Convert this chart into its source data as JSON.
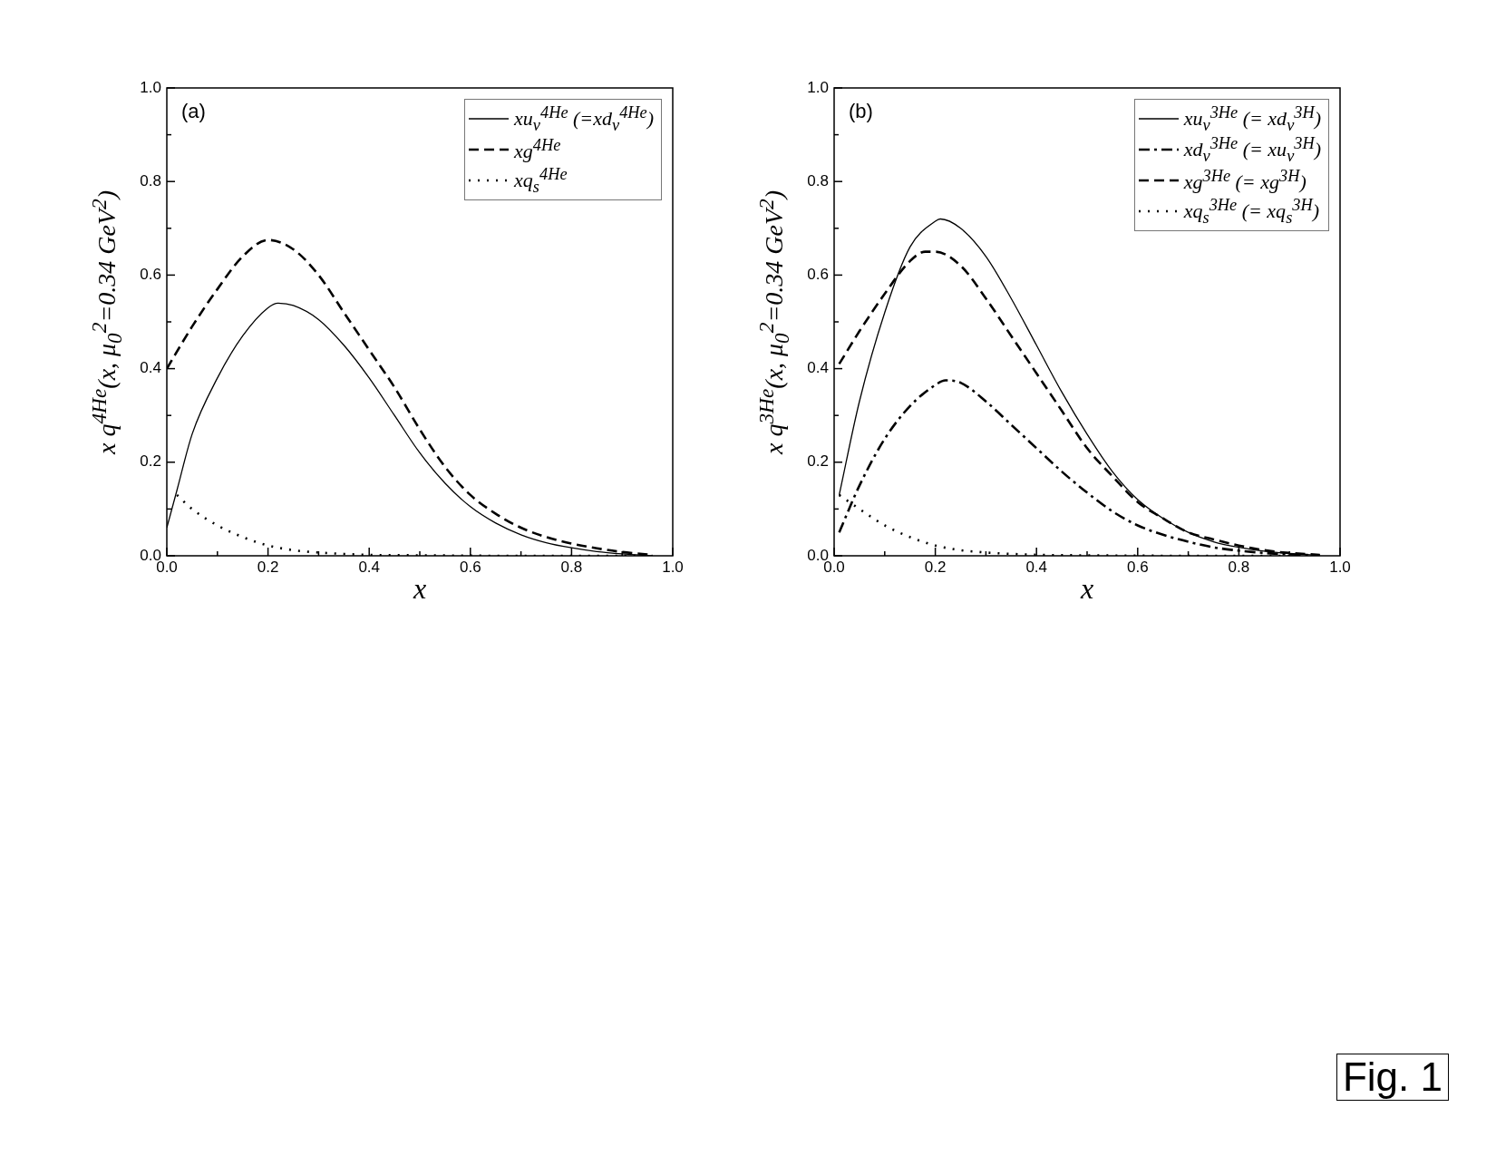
{
  "chart_data": [
    {
      "type": "line",
      "ylabel": "x q$^{4He}$(x, μ$_{0}$$^{2}$=0.34 GeV$^{2}$)",
      "xlabel": "x",
      "annotations": [
        "(a)"
      ],
      "legend": "top right",
      "xlim": [
        0,
        1
      ],
      "ylim": [
        0,
        1
      ],
      "xticks": [
        {
          "value": 0,
          "label": "0.0"
        },
        {
          "value": 0.1,
          "label": null
        },
        0.2,
        {
          "value": 0.3,
          "label": null
        },
        0.4,
        {
          "value": 0.5,
          "label": null
        },
        0.6,
        {
          "value": 0.7,
          "label": null
        },
        0.8,
        {
          "value": 0.9,
          "label": null
        },
        {
          "value": 1,
          "label": "1.0"
        }
      ],
      "yticks": [
        {
          "value": 0,
          "label": "0.0"
        },
        {
          "value": 0.1,
          "label": null
        },
        0.2,
        {
          "value": 0.3,
          "label": null
        },
        0.4,
        {
          "value": 0.5,
          "label": null
        },
        0.6,
        {
          "value": 0.7,
          "label": null
        },
        0.8,
        {
          "value": 0.9,
          "label": null
        },
        {
          "value": 1,
          "label": "1.0"
        }
      ],
      "series": [
        {
          "name": "xu$_{v}$$^{4He}$ (=xd$_{v}$$^{4He}$)",
          "color": "#000000",
          "line_style": "solid",
          "x": [
            0,
            0.02,
            0.05,
            0.1,
            0.15,
            0.2,
            0.22,
            0.25,
            0.3,
            0.35,
            0.4,
            0.45,
            0.5,
            0.55,
            0.6,
            0.65,
            0.7,
            0.75,
            0.8,
            0.85,
            0.9,
            0.96
          ],
          "values": [
            0.06,
            0.14,
            0.26,
            0.38,
            0.47,
            0.53,
            0.54,
            0.535,
            0.505,
            0.45,
            0.38,
            0.3,
            0.22,
            0.155,
            0.105,
            0.07,
            0.045,
            0.028,
            0.017,
            0.009,
            0.004,
            0.0
          ]
        },
        {
          "name": "xg$^{4He}$",
          "color": "#000000",
          "line_style": "dashed",
          "x": [
            0,
            0.05,
            0.1,
            0.15,
            0.2,
            0.25,
            0.3,
            0.35,
            0.4,
            0.45,
            0.5,
            0.55,
            0.6,
            0.65,
            0.7,
            0.75,
            0.8,
            0.85,
            0.9,
            0.96
          ],
          "values": [
            0.4,
            0.49,
            0.57,
            0.64,
            0.675,
            0.655,
            0.6,
            0.52,
            0.44,
            0.36,
            0.27,
            0.19,
            0.13,
            0.09,
            0.06,
            0.04,
            0.026,
            0.016,
            0.008,
            0.002
          ]
        },
        {
          "name": "xq$_{s}$$^{4He}$",
          "color": "#000000",
          "line_style": "dotted",
          "x": [
            0.02,
            0.05,
            0.1,
            0.15,
            0.2,
            0.25,
            0.3,
            0.35,
            0.4,
            0.5,
            0.7,
            0.96
          ],
          "values": [
            0.13,
            0.1,
            0.065,
            0.04,
            0.022,
            0.012,
            0.007,
            0.004,
            0.002,
            0.001,
            0.0,
            0.0
          ]
        }
      ]
    },
    {
      "type": "line",
      "ylabel": "x q$^{3He}$(x, μ$_{0}$$^{2}$=0.34 GeV$^{2}$)",
      "xlabel": "x",
      "annotations": [
        "(b)",
        "Fig. 1"
      ],
      "legend": "top right",
      "xlim": [
        0,
        1
      ],
      "ylim": [
        0,
        1
      ],
      "xticks": [
        {
          "value": 0,
          "label": "0.0"
        },
        {
          "value": 0.1,
          "label": null
        },
        0.2,
        {
          "value": 0.3,
          "label": null
        },
        0.4,
        {
          "value": 0.5,
          "label": null
        },
        0.6,
        {
          "value": 0.7,
          "label": null
        },
        0.8,
        {
          "value": 0.9,
          "label": null
        },
        {
          "value": 1,
          "label": "1.0"
        }
      ],
      "yticks": [
        {
          "value": 0,
          "label": "0.0"
        },
        {
          "value": 0.1,
          "label": null
        },
        0.2,
        {
          "value": 0.3,
          "label": null
        },
        0.4,
        {
          "value": 0.5,
          "label": null
        },
        0.6,
        {
          "value": 0.7,
          "label": null
        },
        0.8,
        {
          "value": 0.9,
          "label": null
        },
        {
          "value": 1,
          "label": "1.0"
        }
      ],
      "series": [
        {
          "name": "xu$_{v}$$^{3He}$ (= xd$_{v}$$^{3H}$)",
          "color": "#000000",
          "line_style": "solid",
          "x": [
            0.01,
            0.05,
            0.1,
            0.15,
            0.2,
            0.21,
            0.25,
            0.3,
            0.35,
            0.4,
            0.45,
            0.5,
            0.55,
            0.6,
            0.65,
            0.7,
            0.75,
            0.8,
            0.85,
            0.9,
            0.96
          ],
          "values": [
            0.13,
            0.33,
            0.52,
            0.66,
            0.715,
            0.72,
            0.7,
            0.64,
            0.55,
            0.45,
            0.35,
            0.26,
            0.18,
            0.12,
            0.08,
            0.05,
            0.03,
            0.018,
            0.01,
            0.005,
            0.001
          ]
        },
        {
          "name": "xd$_{v}$$^{3He}$ (= xu$_{v}$$^{3H}$)",
          "color": "#000000",
          "line_style": "dashdot",
          "x": [
            0.01,
            0.05,
            0.1,
            0.15,
            0.2,
            0.22,
            0.25,
            0.3,
            0.35,
            0.4,
            0.45,
            0.5,
            0.55,
            0.6,
            0.65,
            0.7,
            0.75,
            0.8,
            0.85,
            0.9,
            0.96
          ],
          "values": [
            0.05,
            0.15,
            0.25,
            0.32,
            0.365,
            0.375,
            0.37,
            0.33,
            0.28,
            0.23,
            0.18,
            0.135,
            0.095,
            0.065,
            0.045,
            0.03,
            0.018,
            0.011,
            0.006,
            0.003,
            0.001
          ]
        },
        {
          "name": "xg$^{3He}$ (= xg$^{3H}$)",
          "color": "#000000",
          "line_style": "dashed",
          "x": [
            0.01,
            0.05,
            0.1,
            0.15,
            0.18,
            0.2,
            0.25,
            0.3,
            0.35,
            0.4,
            0.45,
            0.5,
            0.55,
            0.6,
            0.65,
            0.7,
            0.75,
            0.8,
            0.85,
            0.9,
            0.96
          ],
          "values": [
            0.41,
            0.48,
            0.56,
            0.63,
            0.65,
            0.65,
            0.62,
            0.55,
            0.47,
            0.39,
            0.31,
            0.23,
            0.17,
            0.115,
            0.08,
            0.05,
            0.035,
            0.022,
            0.012,
            0.006,
            0.002
          ]
        },
        {
          "name": "xq$_{s}$$^{3He}$ (= xq$_{s}$$^{3H}$)",
          "color": "#000000",
          "line_style": "dotted",
          "x": [
            0.01,
            0.05,
            0.1,
            0.15,
            0.2,
            0.25,
            0.3,
            0.35,
            0.4,
            0.5,
            0.7,
            0.96
          ],
          "values": [
            0.13,
            0.1,
            0.065,
            0.04,
            0.022,
            0.012,
            0.007,
            0.004,
            0.002,
            0.001,
            0.0,
            0.0
          ]
        }
      ]
    }
  ]
}
